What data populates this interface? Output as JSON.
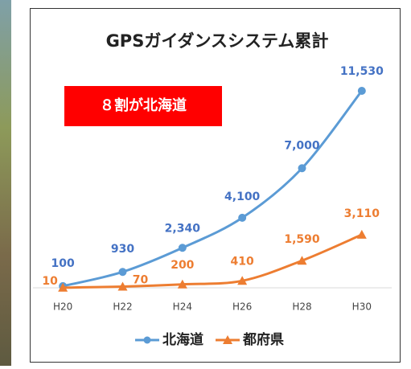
{
  "chart_data": {
    "type": "line",
    "title": "GPSガイダンスシステム累計",
    "annotation": "８割が北海道",
    "categories": [
      "H20",
      "H22",
      "H24",
      "H26",
      "H28",
      "H30"
    ],
    "series": [
      {
        "name": "北海道",
        "color": "#5b9bd5",
        "marker": "circle",
        "values": [
          100,
          930,
          2340,
          4100,
          7000,
          11530
        ],
        "value_labels": [
          "100",
          "930",
          "2,340",
          "4,100",
          "7,000",
          "11,530"
        ]
      },
      {
        "name": "都府県",
        "color": "#ed7d31",
        "marker": "triangle",
        "values": [
          10,
          70,
          200,
          410,
          1590,
          3110
        ],
        "value_labels": [
          "10",
          "70",
          "200",
          "410",
          "1,590",
          "3,110"
        ]
      }
    ],
    "ylim": [
      0,
      12000
    ],
    "legend": "bottom"
  }
}
